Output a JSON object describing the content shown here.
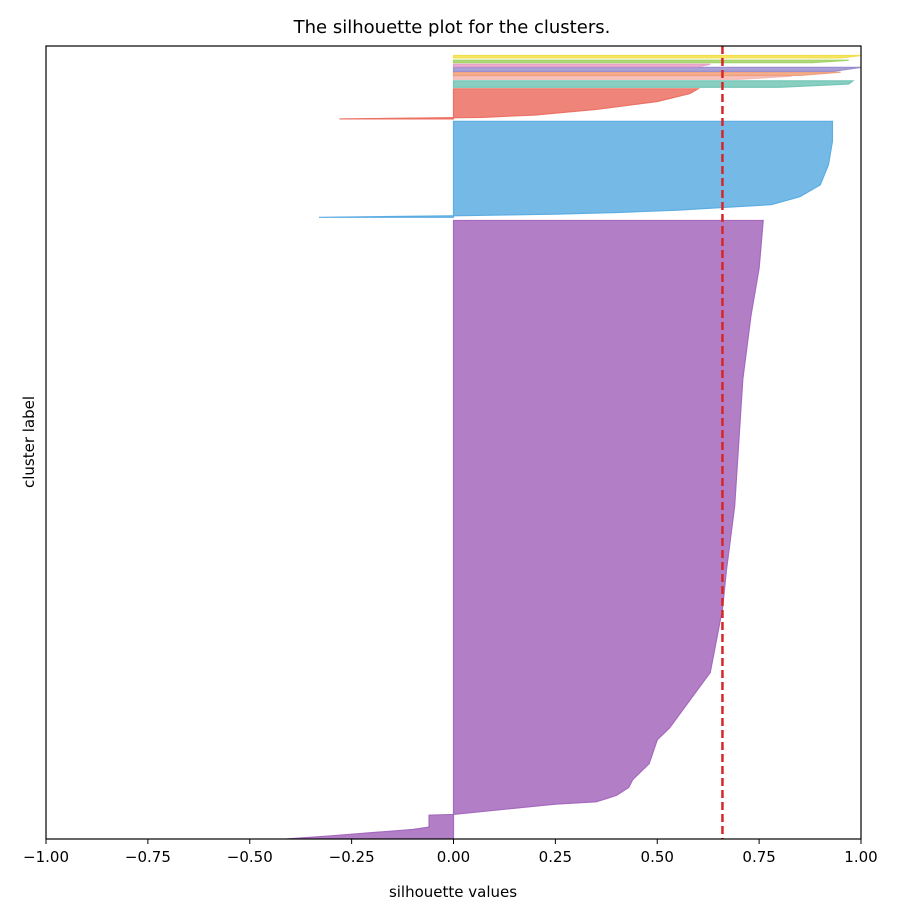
{
  "chart_data": {
    "type": "area",
    "title": "The silhouette plot for the clusters.",
    "xlabel": "silhouette values",
    "ylabel": "cluster label",
    "xlim": [
      -1.0,
      1.0
    ],
    "ylim": [
      0,
      1000
    ],
    "xticks": [
      -1.0,
      -0.75,
      -0.5,
      -0.25,
      0.0,
      0.25,
      0.5,
      0.75,
      1.0
    ],
    "xtick_labels": [
      "−1.00",
      "−0.75",
      "−0.50",
      "−0.25",
      "0.00",
      "0.25",
      "0.50",
      "0.75",
      "1.00"
    ],
    "yticks_shown": false,
    "average_silhouette": 0.66,
    "average_line_color": "#d62728",
    "clusters": [
      {
        "color": "#a569bd",
        "y_range": [
          0,
          780
        ],
        "profile": [
          [
            0,
            -0.41
          ],
          [
            4,
            -0.3
          ],
          [
            8,
            -0.2
          ],
          [
            12,
            -0.1
          ],
          [
            15,
            -0.06
          ],
          [
            30,
            -0.06
          ],
          [
            31,
            0.0
          ],
          [
            44,
            0.25
          ],
          [
            47,
            0.35
          ],
          [
            50,
            0.37
          ],
          [
            55,
            0.4
          ],
          [
            65,
            0.43
          ],
          [
            75,
            0.44
          ],
          [
            95,
            0.48
          ],
          [
            110,
            0.49
          ],
          [
            125,
            0.5
          ],
          [
            140,
            0.53
          ],
          [
            175,
            0.58
          ],
          [
            210,
            0.63
          ],
          [
            290,
            0.66
          ],
          [
            340,
            0.67
          ],
          [
            420,
            0.69
          ],
          [
            500,
            0.7
          ],
          [
            580,
            0.71
          ],
          [
            660,
            0.73
          ],
          [
            720,
            0.75
          ],
          [
            780,
            0.76
          ]
        ]
      },
      {
        "color": "#5dade2",
        "y_range": [
          784,
          905
        ],
        "profile": [
          [
            784,
            -0.33
          ],
          [
            786,
            0.02
          ],
          [
            788,
            0.25
          ],
          [
            790,
            0.4
          ],
          [
            793,
            0.55
          ],
          [
            800,
            0.78
          ],
          [
            810,
            0.85
          ],
          [
            825,
            0.9
          ],
          [
            850,
            0.92
          ],
          [
            880,
            0.93
          ],
          [
            905,
            0.93
          ]
        ]
      },
      {
        "color": "#ec7063",
        "y_range": [
          908,
          946
        ],
        "profile": [
          [
            908,
            -0.28
          ],
          [
            910,
            0.07
          ],
          [
            913,
            0.2
          ],
          [
            920,
            0.35
          ],
          [
            930,
            0.5
          ],
          [
            940,
            0.58
          ],
          [
            946,
            0.6
          ]
        ]
      },
      {
        "color": "#73c6b6",
        "y_range": [
          948,
          956
        ],
        "profile": [
          [
            948,
            0.8
          ],
          [
            952,
            0.97
          ],
          [
            956,
            0.98
          ]
        ]
      },
      {
        "color": "#f5b7b1",
        "y_range": [
          958,
          962
        ],
        "profile": [
          [
            958,
            0.7
          ],
          [
            962,
            0.83
          ]
        ]
      },
      {
        "color": "#f0a07a",
        "y_range": [
          963,
          967
        ],
        "profile": [
          [
            963,
            0.85
          ],
          [
            967,
            0.95
          ]
        ]
      },
      {
        "color": "#9b8fd0",
        "y_range": [
          968,
          973
        ],
        "profile": [
          [
            968,
            0.93
          ],
          [
            973,
            1.0
          ]
        ]
      },
      {
        "color": "#e8a0c8",
        "y_range": [
          974,
          977
        ],
        "profile": [
          [
            974,
            0.6
          ],
          [
            977,
            0.63
          ]
        ]
      },
      {
        "color": "#a3d468",
        "y_range": [
          979,
          982
        ],
        "profile": [
          [
            979,
            0.88
          ],
          [
            982,
            0.97
          ]
        ]
      },
      {
        "color": "#f4e04d",
        "y_range": [
          985,
          988
        ],
        "profile": [
          [
            985,
            0.95
          ],
          [
            988,
            1.0
          ]
        ]
      }
    ]
  }
}
